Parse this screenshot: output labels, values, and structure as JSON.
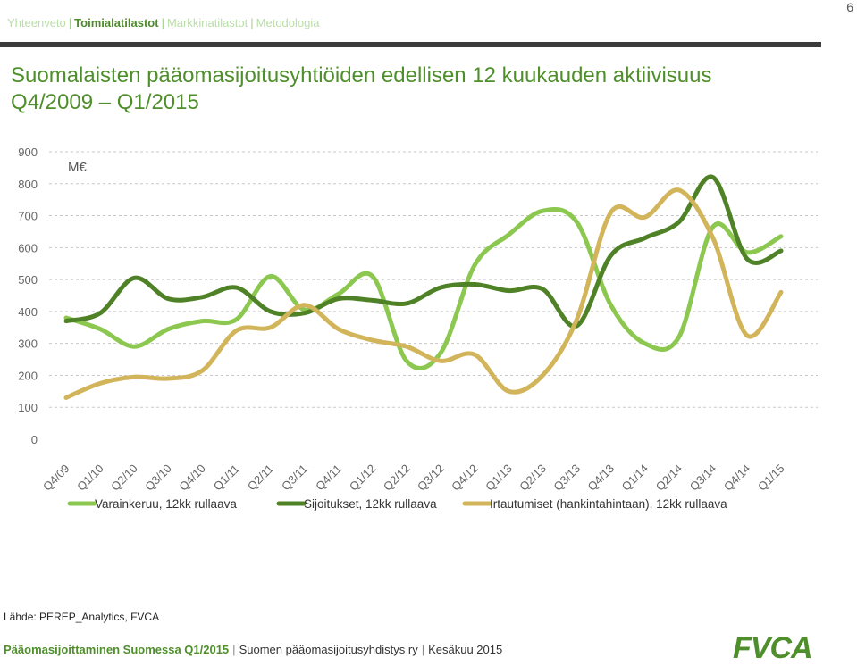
{
  "header": {
    "nav": [
      "Yhteenveto",
      "Toimialatilastot",
      "Markkinatilastot",
      "Metodologia"
    ],
    "active_index": 1,
    "page_number": "6"
  },
  "title": {
    "line1": "Suomalaisten pääomasijoitusyhtiöiden edellisen 12 kuukauden aktiivisuus",
    "line2": "Q4/2009 – Q1/2015"
  },
  "chart_data": {
    "type": "line",
    "unit_label": "M€",
    "ylim": [
      0,
      900
    ],
    "yticks": [
      "0",
      "100",
      "200",
      "300",
      "400",
      "500",
      "600",
      "700",
      "800",
      "900"
    ],
    "ytick_values": [
      0,
      100,
      200,
      300,
      400,
      500,
      600,
      700,
      800,
      900
    ],
    "grid": "horizontal-dashed",
    "legend_position": "bottom",
    "categories": [
      "Q4/09",
      "Q1/10",
      "Q2/10",
      "Q3/10",
      "Q4/10",
      "Q1/11",
      "Q2/11",
      "Q3/11",
      "Q4/11",
      "Q1/12",
      "Q2/12",
      "Q3/12",
      "Q4/12",
      "Q1/13",
      "Q2/13",
      "Q3/13",
      "Q4/13",
      "Q1/14",
      "Q2/14",
      "Q3/14",
      "Q4/14",
      "Q1/15"
    ],
    "series": [
      {
        "name": "Varainkeruu, 12kk rullaava",
        "color": "#8cc850",
        "values": [
          380,
          345,
          290,
          345,
          370,
          375,
          510,
          405,
          455,
          510,
          245,
          270,
          545,
          640,
          715,
          680,
          420,
          300,
          320,
          665,
          585,
          635
        ]
      },
      {
        "name": "Sijoitukset, 12kk rullaava",
        "color": "#4f8226",
        "values": [
          370,
          395,
          505,
          440,
          445,
          475,
          400,
          395,
          440,
          435,
          425,
          475,
          485,
          465,
          470,
          355,
          575,
          630,
          680,
          820,
          565,
          590
        ]
      },
      {
        "name": "Irtautumiset (hankintahintaan), 12kk rullaava",
        "color": "#d2b55b",
        "values": [
          130,
          175,
          195,
          190,
          215,
          340,
          350,
          420,
          345,
          310,
          290,
          245,
          265,
          150,
          200,
          375,
          710,
          695,
          780,
          630,
          325,
          460
        ]
      }
    ]
  },
  "source": "Lähde: PEREP_Analytics, FVCA",
  "footer": {
    "part1": "Pääomasijoittaminen Suomessa Q1/2015",
    "part2": "Suomen pääomasijoitusyhdistys ry",
    "part3": "Kesäkuu 2015"
  },
  "logo_text": "FVCA"
}
